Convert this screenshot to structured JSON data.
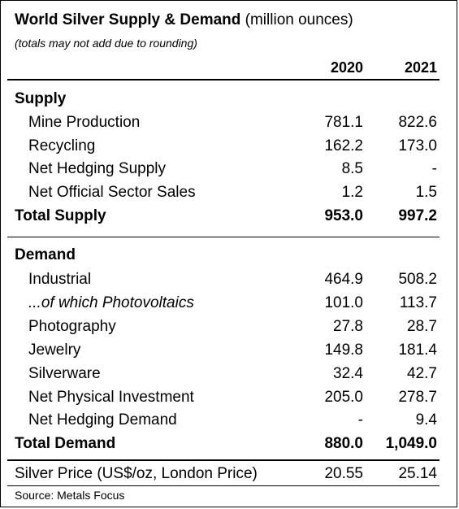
{
  "title_bold": "World Silver Supply & Demand",
  "title_rest": "(million ounces)",
  "note": "(totals may not add due to rounding)",
  "years": [
    "2020",
    "2021"
  ],
  "supply": {
    "heading": "Supply",
    "rows": [
      {
        "label": "Mine Production",
        "v2020": "781.1",
        "v2021": "822.6"
      },
      {
        "label": "Recycling",
        "v2020": "162.2",
        "v2021": "173.0"
      },
      {
        "label": "Net Hedging Supply",
        "v2020": "8.5",
        "v2021": "-"
      },
      {
        "label": "Net Official Sector Sales",
        "v2020": "1.2",
        "v2021": "1.5"
      }
    ],
    "total": {
      "label": "Total Supply",
      "v2020": "953.0",
      "v2021": "997.2"
    }
  },
  "demand": {
    "heading": "Demand",
    "rows": [
      {
        "label": "Industrial",
        "v2020": "464.9",
        "v2021": "508.2"
      },
      {
        "label": "...of which Photovoltaics",
        "v2020": "101.0",
        "v2021": "113.7"
      },
      {
        "label": "Photography",
        "v2020": "27.8",
        "v2021": "28.7"
      },
      {
        "label": "Jewelry",
        "v2020": "149.8",
        "v2021": "181.4"
      },
      {
        "label": "Silverware",
        "v2020": "32.4",
        "v2021": "42.7"
      },
      {
        "label": "Net Physical Investment",
        "v2020": "205.0",
        "v2021": "278.7"
      },
      {
        "label": "Net Hedging Demand",
        "v2020": "-",
        "v2021": "9.4"
      }
    ],
    "total": {
      "label": "Total Demand",
      "v2020": "880.0",
      "v2021": "1,049.0"
    }
  },
  "price": {
    "label": "Silver Price (US$/oz, London Price)",
    "v2020": "20.55",
    "v2021": "25.14"
  },
  "source": "Source: Metals Focus"
}
